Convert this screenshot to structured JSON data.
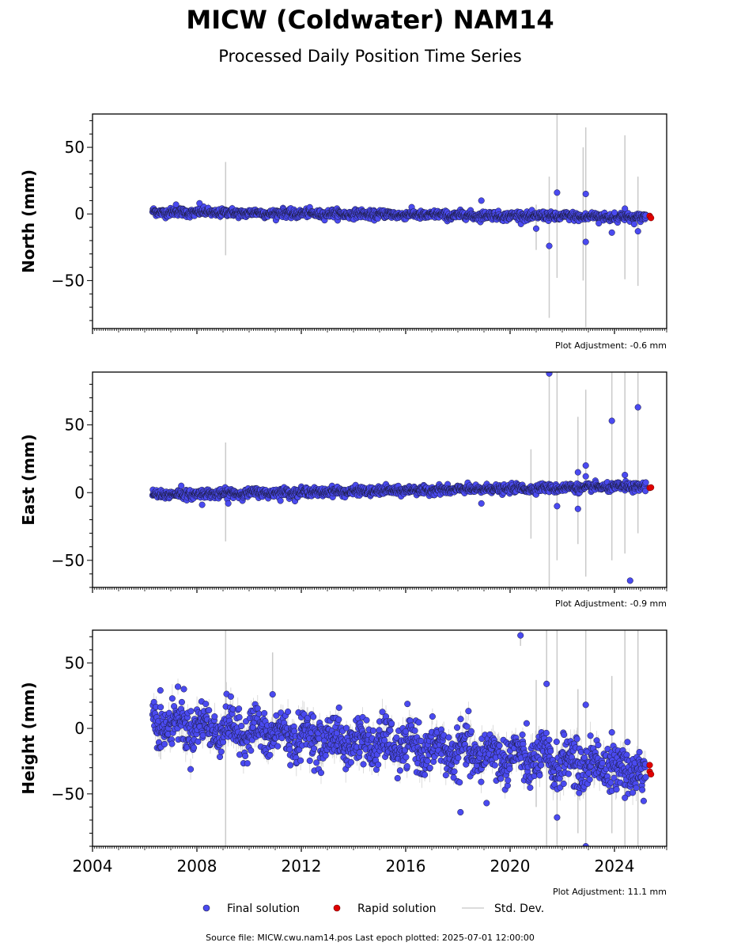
{
  "title": "MICW (Coldwater) NAM14",
  "subtitle": "Processed Daily Position Time Series",
  "colors": {
    "final": "#4a4af0",
    "final_edge": "#1a1a3a",
    "rapid": "#e00000",
    "std_dev": "#b8b8b8"
  },
  "legend": {
    "final_label": "Final solution",
    "rapid_label": "Rapid solution",
    "std_label": "Std. Dev."
  },
  "footer": "Source file: MICW.cwu.nam14.pos  Last epoch plotted: 2025-07-01 12:00:00",
  "chart_data": [
    {
      "type": "scatter",
      "ylabel": "North (mm)",
      "adjustment_label": "Plot Adjustment: -0.6 mm",
      "xlim": [
        2004.0,
        2026.0
      ],
      "ylim": [
        -86,
        75
      ],
      "yticks": [
        -50,
        0,
        50
      ],
      "xticks": [
        2004,
        2008,
        2012,
        2016,
        2020,
        2024
      ],
      "show_xtick_labels": false,
      "trend": {
        "start": [
          2006.3,
          1.5
        ],
        "end": [
          2025.2,
          -2.5
        ],
        "scatter_early": 1.5,
        "scatter_late": 1.6
      },
      "outliers": [
        {
          "x": 2007.2,
          "y": 7
        },
        {
          "x": 2008.1,
          "y": 8
        },
        {
          "x": 2018.9,
          "y": 10
        },
        {
          "x": 2021.0,
          "y": -11
        },
        {
          "x": 2021.5,
          "y": -24
        },
        {
          "x": 2021.8,
          "y": 16
        },
        {
          "x": 2022.9,
          "y": 15
        },
        {
          "x": 2022.9,
          "y": -21
        },
        {
          "x": 2023.4,
          "y": -7
        },
        {
          "x": 2023.9,
          "y": -14
        },
        {
          "x": 2024.0,
          "y": 1
        },
        {
          "x": 2024.4,
          "y": 4
        },
        {
          "x": 2024.9,
          "y": -13
        },
        {
          "x": 2025.2,
          "y": -1
        }
      ],
      "error_bars": [
        {
          "x": 2009.1,
          "low": -31,
          "high": 39
        },
        {
          "x": 2021.0,
          "low": -27,
          "high": 7
        },
        {
          "x": 2021.5,
          "low": -78,
          "high": 28
        },
        {
          "x": 2021.8,
          "low": -48,
          "high": 75
        },
        {
          "x": 2022.9,
          "low": -85,
          "high": 65
        },
        {
          "x": 2022.8,
          "low": -50,
          "high": 50
        },
        {
          "x": 2024.4,
          "low": -49,
          "high": 59
        },
        {
          "x": 2024.9,
          "low": -54,
          "high": 28
        }
      ],
      "rapid": [
        {
          "x": 2025.35,
          "y": -1.5
        },
        {
          "x": 2025.4,
          "y": -3
        }
      ]
    },
    {
      "type": "scatter",
      "ylabel": "East (mm)",
      "adjustment_label": "Plot Adjustment: -0.9 mm",
      "xlim": [
        2004.0,
        2026.0
      ],
      "ylim": [
        -70,
        89
      ],
      "yticks": [
        -50,
        0,
        50
      ],
      "xticks": [
        2004,
        2008,
        2012,
        2016,
        2020,
        2024
      ],
      "show_xtick_labels": false,
      "trend": {
        "start": [
          2006.3,
          -1.5
        ],
        "end": [
          2025.2,
          4.5
        ],
        "scatter_early": 1.6,
        "scatter_late": 1.5
      },
      "outliers": [
        {
          "x": 2007.4,
          "y": 5
        },
        {
          "x": 2008.2,
          "y": -9
        },
        {
          "x": 2009.2,
          "y": -8
        },
        {
          "x": 2011.2,
          "y": -6
        },
        {
          "x": 2018.9,
          "y": -8
        },
        {
          "x": 2021.5,
          "y": 88
        },
        {
          "x": 2021.8,
          "y": -10
        },
        {
          "x": 2022.6,
          "y": 15
        },
        {
          "x": 2022.6,
          "y": -12
        },
        {
          "x": 2022.9,
          "y": 20
        },
        {
          "x": 2022.9,
          "y": 12
        },
        {
          "x": 2023.9,
          "y": 53
        },
        {
          "x": 2024.4,
          "y": 13
        },
        {
          "x": 2024.6,
          "y": -65
        },
        {
          "x": 2024.9,
          "y": 63
        }
      ],
      "error_bars": [
        {
          "x": 2009.1,
          "low": -36,
          "high": 37
        },
        {
          "x": 2020.8,
          "low": -34,
          "high": 32
        },
        {
          "x": 2021.5,
          "low": -70,
          "high": 89
        },
        {
          "x": 2021.8,
          "low": -50,
          "high": 89
        },
        {
          "x": 2022.6,
          "low": -38,
          "high": 56
        },
        {
          "x": 2022.9,
          "low": -62,
          "high": 76
        },
        {
          "x": 2023.9,
          "low": -50,
          "high": 89
        },
        {
          "x": 2024.4,
          "low": -45,
          "high": 89
        },
        {
          "x": 2024.9,
          "low": -30,
          "high": 89
        }
      ],
      "rapid": [
        {
          "x": 2025.35,
          "y": 3.5
        },
        {
          "x": 2025.4,
          "y": 3.8
        }
      ]
    },
    {
      "type": "scatter",
      "ylabel": "Height (mm)",
      "adjustment_label": "Plot Adjustment: 11.1 mm",
      "xlim": [
        2004.0,
        2026.0
      ],
      "ylim": [
        -90,
        75
      ],
      "yticks": [
        -50,
        0,
        50
      ],
      "xticks": [
        2004,
        2008,
        2012,
        2016,
        2020,
        2024
      ],
      "xtick_labels": [
        "2004",
        "2008",
        "2012",
        "2016",
        "2020",
        "2024"
      ],
      "show_xtick_labels": true,
      "trend": {
        "start": [
          2006.3,
          5
        ],
        "end": [
          2025.2,
          -32
        ],
        "scatter_early": 8,
        "scatter_late": 9
      },
      "outliers": [
        {
          "x": 2006.6,
          "y": 29
        },
        {
          "x": 2007.5,
          "y": 30
        },
        {
          "x": 2010.9,
          "y": 26
        },
        {
          "x": 2018.1,
          "y": -64
        },
        {
          "x": 2019.1,
          "y": -57
        },
        {
          "x": 2020.4,
          "y": 71
        },
        {
          "x": 2021.4,
          "y": 34
        },
        {
          "x": 2021.8,
          "y": -68
        },
        {
          "x": 2022.9,
          "y": 18
        },
        {
          "x": 2022.9,
          "y": -90
        },
        {
          "x": 2023.9,
          "y": -3
        },
        {
          "x": 2024.4,
          "y": -53
        }
      ],
      "error_bars": [
        {
          "x": 2009.1,
          "low": -90,
          "high": 75
        },
        {
          "x": 2010.9,
          "low": -10,
          "high": 58
        },
        {
          "x": 2020.4,
          "low": 63,
          "high": 75
        },
        {
          "x": 2021.0,
          "low": -60,
          "high": 37
        },
        {
          "x": 2021.4,
          "low": -90,
          "high": 75
        },
        {
          "x": 2021.8,
          "low": -90,
          "high": 75
        },
        {
          "x": 2022.6,
          "low": -80,
          "high": 30
        },
        {
          "x": 2022.9,
          "low": -90,
          "high": 75
        },
        {
          "x": 2023.9,
          "low": -80,
          "high": 40
        },
        {
          "x": 2024.4,
          "low": -90,
          "high": 75
        },
        {
          "x": 2024.9,
          "low": -90,
          "high": 75
        }
      ],
      "rapid": [
        {
          "x": 2025.35,
          "y": -28
        },
        {
          "x": 2025.35,
          "y": -33
        },
        {
          "x": 2025.4,
          "y": -35
        }
      ]
    }
  ]
}
